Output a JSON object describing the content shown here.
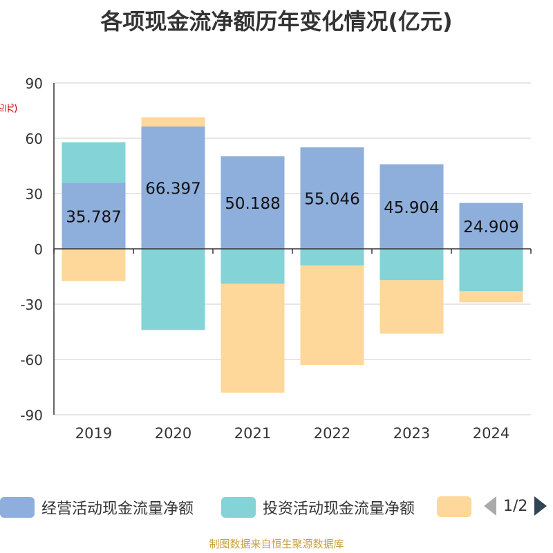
{
  "title": "各项现金流净额历年变化情况(亿元)",
  "unit_label": "(亿元)",
  "colors": {
    "operating": "#8eaedb",
    "investing": "#84d3d6",
    "financing": "#fdd89a",
    "axis": "#333333",
    "grid": "#cccccc"
  },
  "chart_data": {
    "type": "bar",
    "stacked": true,
    "categories": [
      "2019",
      "2020",
      "2021",
      "2022",
      "2023",
      "2024"
    ],
    "ylim": [
      -90,
      90
    ],
    "yticks": [
      90,
      60,
      30,
      0,
      -30,
      -60,
      -90
    ],
    "series": [
      {
        "name": "经营活动现金流量净额",
        "key": "operating",
        "values": [
          35.787,
          66.397,
          50.188,
          55.046,
          45.904,
          24.909
        ],
        "labels": [
          "35.787",
          "66.397",
          "50.188",
          "55.046",
          "45.904",
          "24.909"
        ]
      },
      {
        "name": "投资活动现金流量净额",
        "key": "investing",
        "values": [
          22,
          -44,
          -19,
          -9,
          -17,
          -23
        ]
      },
      {
        "name": "",
        "key": "financing",
        "values": [
          -17.5,
          5,
          -59,
          -54,
          -29,
          -6
        ]
      }
    ]
  },
  "legend": {
    "items": [
      "经营活动现金流量净额",
      "投资活动现金流量净额",
      ""
    ],
    "page": "1/2"
  },
  "source": "制图数据来自恒生聚源数据库"
}
